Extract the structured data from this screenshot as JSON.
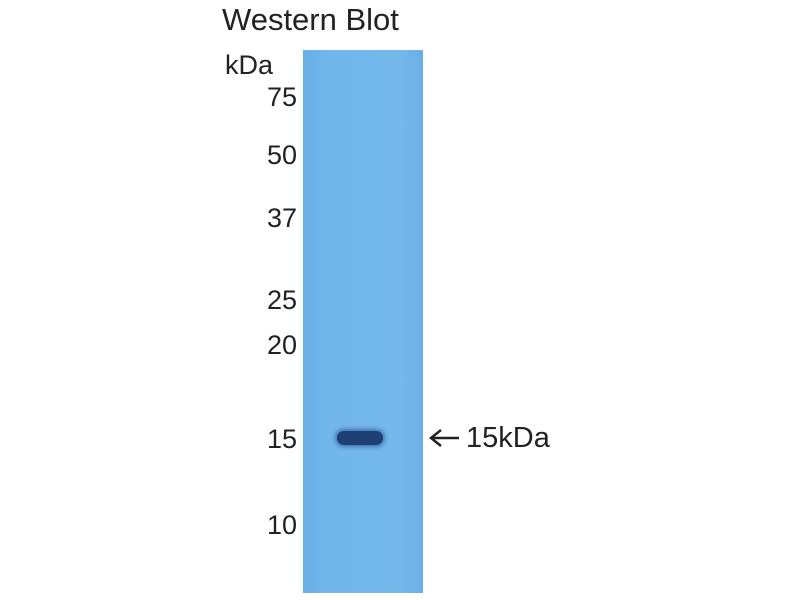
{
  "title": "Western Blot",
  "unit_label": "kDa",
  "markers": [
    "75",
    "50",
    "37",
    "25",
    "20",
    "15",
    "10"
  ],
  "band_label": "15kDa",
  "colors": {
    "lane": "#72b7ec",
    "band": "#1d3f73"
  },
  "icons": {
    "arrow": "arrow-left-icon"
  }
}
